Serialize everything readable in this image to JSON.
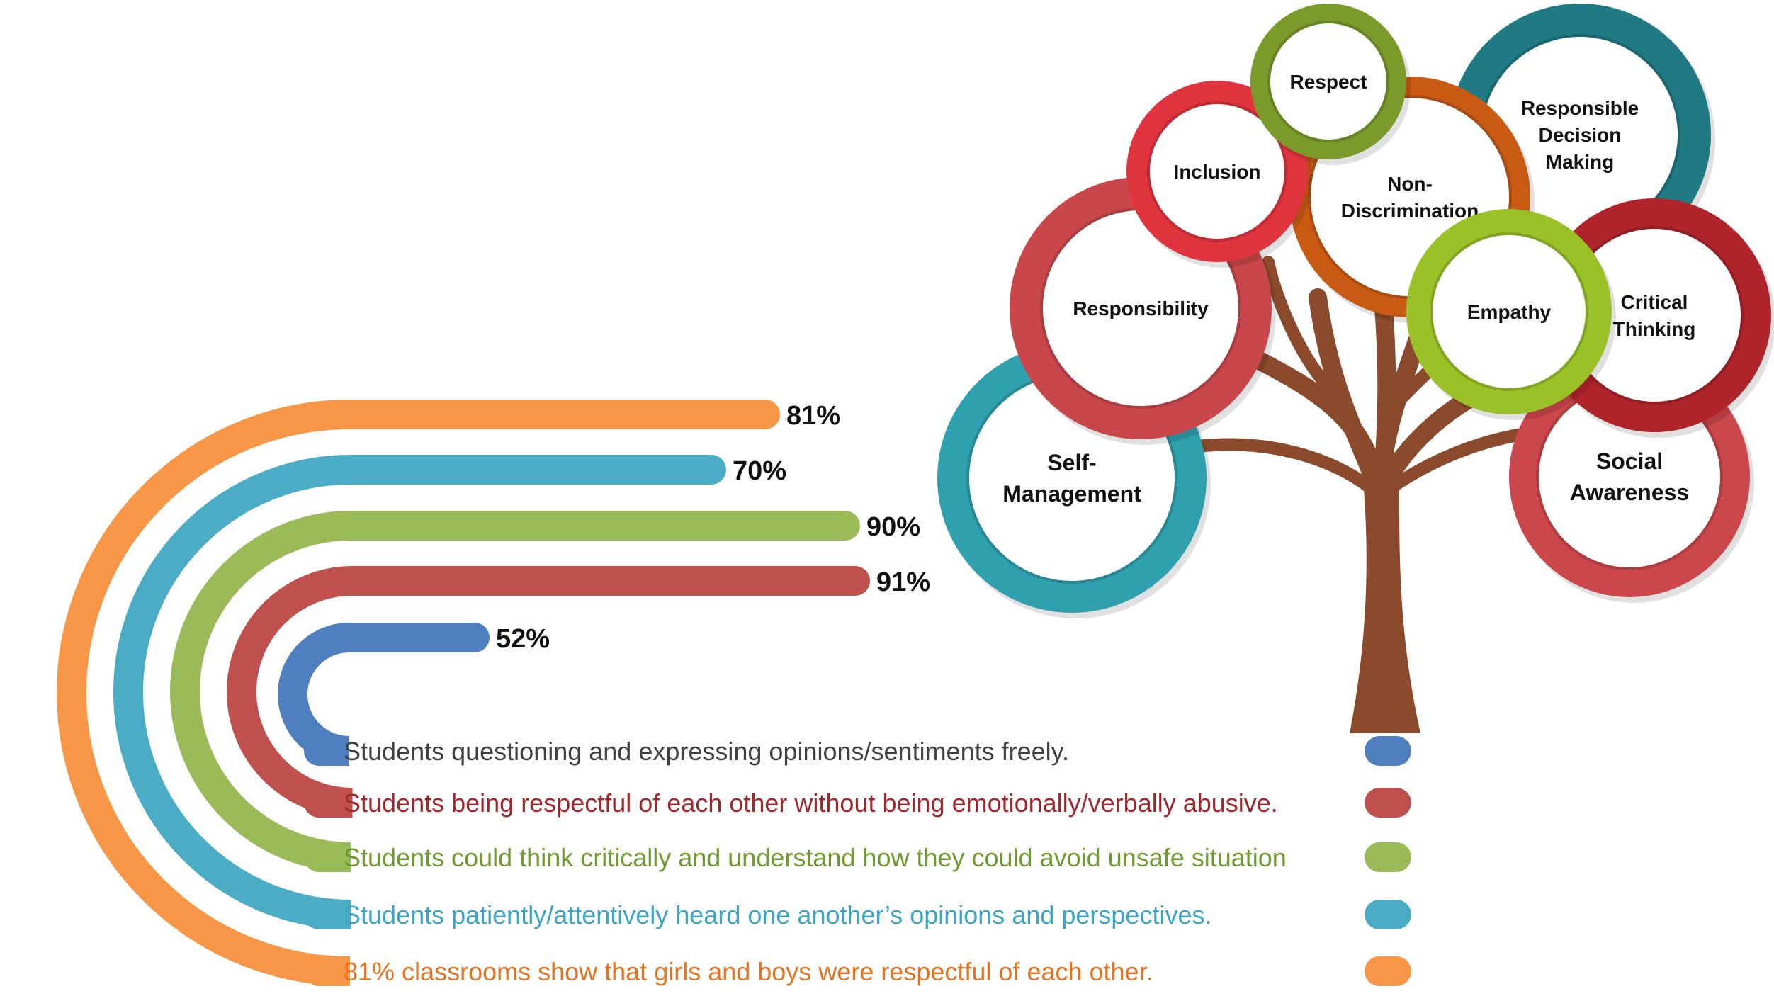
{
  "chart_data": {
    "type": "bar",
    "series_order": [
      "blue",
      "red",
      "green",
      "cyan",
      "orange"
    ],
    "items": [
      {
        "key": "blue",
        "label": "Students questioning and expressing opinions/sentiments freely.",
        "value": 52,
        "value_label": "52%",
        "color": "#4f7fbe"
      },
      {
        "key": "red",
        "label": "Students being respectful of each other without being emotionally/verbally abusive.",
        "value": 91,
        "value_label": "91%",
        "color": "#c0504d"
      },
      {
        "key": "green",
        "label": "Students could think critically and understand how they could avoid unsafe situation",
        "value": 90,
        "value_label": "90%",
        "color": "#9bbb59"
      },
      {
        "key": "cyan",
        "label": "Students patiently/attentively heard one another’s opinions and perspectives.",
        "value": 70,
        "value_label": "70%",
        "color": "#4bacc6"
      },
      {
        "key": "orange",
        "label": "81% classrooms show that girls and boys were respectful of each other.",
        "value": 81,
        "value_label": "81%",
        "color": "#f79646"
      }
    ],
    "label_colors": {
      "blue": "#404040",
      "red": "#a0282d",
      "green": "#6f9a2e",
      "cyan": "#3aa5c7",
      "orange": "#e8711e"
    }
  },
  "tree": {
    "trunk_color": "#8b4a2b",
    "circles": [
      {
        "key": "self-management",
        "lines": [
          "Self-",
          "Management"
        ],
        "ring": "#2fa0ad"
      },
      {
        "key": "responsibility",
        "lines": [
          "Responsibility"
        ],
        "ring": "#c9474a"
      },
      {
        "key": "inclusion",
        "lines": [
          "Inclusion"
        ],
        "ring": "#e0343f"
      },
      {
        "key": "respect",
        "lines": [
          "Respect"
        ],
        "ring": "#7a9a2a"
      },
      {
        "key": "non-discrimination",
        "lines": [
          "Non-",
          "Discrimination"
        ],
        "ring": "#c85a14"
      },
      {
        "key": "responsible-decision-making",
        "lines": [
          "Responsible",
          "Decision",
          "Making"
        ],
        "ring": "#1f7a84"
      },
      {
        "key": "critical-thinking",
        "lines": [
          "Critical",
          "Thinking"
        ],
        "ring": "#b0242c"
      },
      {
        "key": "empathy",
        "lines": [
          "Empathy"
        ],
        "ring": "#9bc128"
      },
      {
        "key": "social-awareness",
        "lines": [
          "Social",
          "Awareness"
        ],
        "ring": "#cc474c"
      }
    ]
  }
}
